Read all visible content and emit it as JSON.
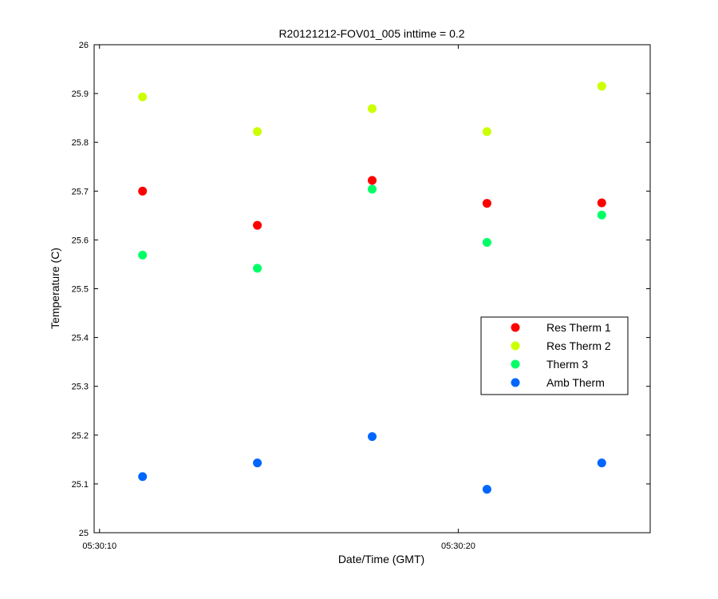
{
  "chart_data": {
    "type": "scatter",
    "title": "R20121212-FOV01_005 inttime = 0.2",
    "xlabel": "Date/Time (GMT)",
    "ylabel": "Temperature (C)",
    "x_ticks": [
      {
        "value": "05:30:10",
        "label": "05:30:10"
      },
      {
        "value": "05:30:20",
        "label": "05:30:20"
      }
    ],
    "xlim": [
      "05:30:09.85",
      "05:30:25.35"
    ],
    "ylim": [
      25.0,
      26.0
    ],
    "y_ticks": [
      "25",
      "25.1",
      "25.2",
      "25.3",
      "25.4",
      "25.5",
      "25.6",
      "25.7",
      "25.8",
      "25.9",
      "26"
    ],
    "grid": false,
    "legend_position": "right",
    "x": [
      "05:30:11.2",
      "05:30:14.4",
      "05:30:17.6",
      "05:30:20.8",
      "05:30:24.0"
    ],
    "series": [
      {
        "name": "Res Therm 1",
        "color": "#ff0000",
        "values": [
          25.7,
          25.63,
          25.722,
          25.675,
          25.676
        ]
      },
      {
        "name": "Res Therm 2",
        "color": "#ccff00",
        "values": [
          25.893,
          25.822,
          25.869,
          25.822,
          25.915
        ]
      },
      {
        "name": "Therm 3",
        "color": "#00ff66",
        "values": [
          25.569,
          25.542,
          25.704,
          25.595,
          25.651
        ]
      },
      {
        "name": "Amb Therm",
        "color": "#0066ff",
        "values": [
          25.115,
          25.143,
          25.197,
          25.089,
          25.143
        ]
      }
    ]
  }
}
